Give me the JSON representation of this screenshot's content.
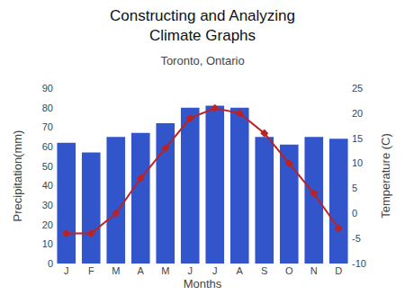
{
  "chart_data": {
    "type": "bar",
    "title": "Toronto, Ontario",
    "annotations": [
      "Constructing and Analyzing\nClimate Graphs"
    ],
    "xlabel": "Months",
    "ylabel": "Precipitation(mm)",
    "y2label": "Temperature (C)",
    "categories": [
      "J",
      "F",
      "M",
      "A",
      "M",
      "J",
      "J",
      "A",
      "S",
      "O",
      "N",
      "D"
    ],
    "series": [
      {
        "type": "bar",
        "color": "#3355cc",
        "values": [
          62,
          57,
          65,
          67,
          72,
          80,
          81,
          80,
          65,
          61,
          65,
          64
        ]
      },
      {
        "type": "line",
        "axis": "y2",
        "color": "#bb2222",
        "marker": "diamond",
        "values": [
          -4,
          -4,
          0,
          7,
          13,
          19,
          21,
          20,
          16,
          10,
          4,
          -3
        ]
      }
    ],
    "ylim": [
      0,
      90
    ],
    "yticks": [
      0,
      10,
      20,
      30,
      40,
      50,
      60,
      70,
      80,
      90
    ],
    "y2lim": [
      -10,
      25
    ],
    "y2ticks": [
      -10,
      -5,
      0,
      5,
      10,
      15,
      20,
      25
    ],
    "grid": false,
    "legend": false
  }
}
